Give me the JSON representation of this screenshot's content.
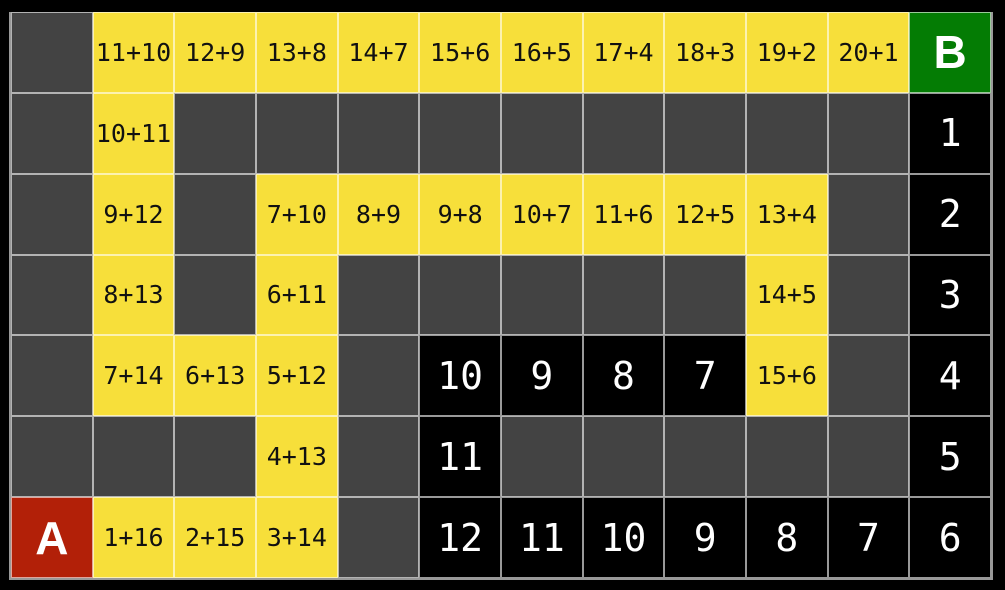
{
  "colors": {
    "background": "#000000",
    "wall": "#434343",
    "path": "#F7DF3A",
    "count_bg": "#000000",
    "start_bg": "#B22008",
    "goal_bg": "#047C04",
    "gridline": "#FFFFFF99",
    "path_text": "#111111",
    "count_text": "#FFFFFF",
    "marker_text": "#FFFFFF"
  },
  "board": {
    "rows": 7,
    "cols": 12,
    "start_label": "A",
    "goal_label": "B",
    "cells": [
      [
        {
          "type": "wall",
          "label": ""
        },
        {
          "type": "path",
          "label": "11+10"
        },
        {
          "type": "path",
          "label": "12+9"
        },
        {
          "type": "path",
          "label": "13+8"
        },
        {
          "type": "path",
          "label": "14+7"
        },
        {
          "type": "path",
          "label": "15+6"
        },
        {
          "type": "path",
          "label": "16+5"
        },
        {
          "type": "path",
          "label": "17+4"
        },
        {
          "type": "path",
          "label": "18+3"
        },
        {
          "type": "path",
          "label": "19+2"
        },
        {
          "type": "path",
          "label": "20+1"
        },
        {
          "type": "goal",
          "label": "B"
        }
      ],
      [
        {
          "type": "wall",
          "label": ""
        },
        {
          "type": "path",
          "label": "10+11"
        },
        {
          "type": "wall",
          "label": ""
        },
        {
          "type": "wall",
          "label": ""
        },
        {
          "type": "wall",
          "label": ""
        },
        {
          "type": "wall",
          "label": ""
        },
        {
          "type": "wall",
          "label": ""
        },
        {
          "type": "wall",
          "label": ""
        },
        {
          "type": "wall",
          "label": ""
        },
        {
          "type": "wall",
          "label": ""
        },
        {
          "type": "wall",
          "label": ""
        },
        {
          "type": "count",
          "label": "1"
        }
      ],
      [
        {
          "type": "wall",
          "label": ""
        },
        {
          "type": "path",
          "label": "9+12"
        },
        {
          "type": "wall",
          "label": ""
        },
        {
          "type": "path",
          "label": "7+10"
        },
        {
          "type": "path",
          "label": "8+9"
        },
        {
          "type": "path",
          "label": "9+8"
        },
        {
          "type": "path",
          "label": "10+7"
        },
        {
          "type": "path",
          "label": "11+6"
        },
        {
          "type": "path",
          "label": "12+5"
        },
        {
          "type": "path",
          "label": "13+4"
        },
        {
          "type": "wall",
          "label": ""
        },
        {
          "type": "count",
          "label": "2"
        }
      ],
      [
        {
          "type": "wall",
          "label": ""
        },
        {
          "type": "path",
          "label": "8+13"
        },
        {
          "type": "wall",
          "label": ""
        },
        {
          "type": "path",
          "label": "6+11"
        },
        {
          "type": "wall",
          "label": ""
        },
        {
          "type": "wall",
          "label": ""
        },
        {
          "type": "wall",
          "label": ""
        },
        {
          "type": "wall",
          "label": ""
        },
        {
          "type": "wall",
          "label": ""
        },
        {
          "type": "path",
          "label": "14+5"
        },
        {
          "type": "wall",
          "label": ""
        },
        {
          "type": "count",
          "label": "3"
        }
      ],
      [
        {
          "type": "wall",
          "label": ""
        },
        {
          "type": "path",
          "label": "7+14"
        },
        {
          "type": "path",
          "label": "6+13"
        },
        {
          "type": "path",
          "label": "5+12"
        },
        {
          "type": "wall",
          "label": ""
        },
        {
          "type": "count",
          "label": "10"
        },
        {
          "type": "count",
          "label": "9"
        },
        {
          "type": "count",
          "label": "8"
        },
        {
          "type": "count",
          "label": "7"
        },
        {
          "type": "path",
          "label": "15+6"
        },
        {
          "type": "wall",
          "label": ""
        },
        {
          "type": "count",
          "label": "4"
        }
      ],
      [
        {
          "type": "wall",
          "label": ""
        },
        {
          "type": "wall",
          "label": ""
        },
        {
          "type": "wall",
          "label": ""
        },
        {
          "type": "path",
          "label": "4+13"
        },
        {
          "type": "wall",
          "label": ""
        },
        {
          "type": "count",
          "label": "11"
        },
        {
          "type": "wall",
          "label": ""
        },
        {
          "type": "wall",
          "label": ""
        },
        {
          "type": "wall",
          "label": ""
        },
        {
          "type": "wall",
          "label": ""
        },
        {
          "type": "wall",
          "label": ""
        },
        {
          "type": "count",
          "label": "5"
        }
      ],
      [
        {
          "type": "start",
          "label": "A"
        },
        {
          "type": "path",
          "label": "1+16"
        },
        {
          "type": "path",
          "label": "2+15"
        },
        {
          "type": "path",
          "label": "3+14"
        },
        {
          "type": "wall",
          "label": ""
        },
        {
          "type": "count",
          "label": "12"
        },
        {
          "type": "count",
          "label": "11"
        },
        {
          "type": "count",
          "label": "10"
        },
        {
          "type": "count",
          "label": "9"
        },
        {
          "type": "count",
          "label": "8"
        },
        {
          "type": "count",
          "label": "7"
        },
        {
          "type": "count",
          "label": "6"
        }
      ]
    ]
  }
}
